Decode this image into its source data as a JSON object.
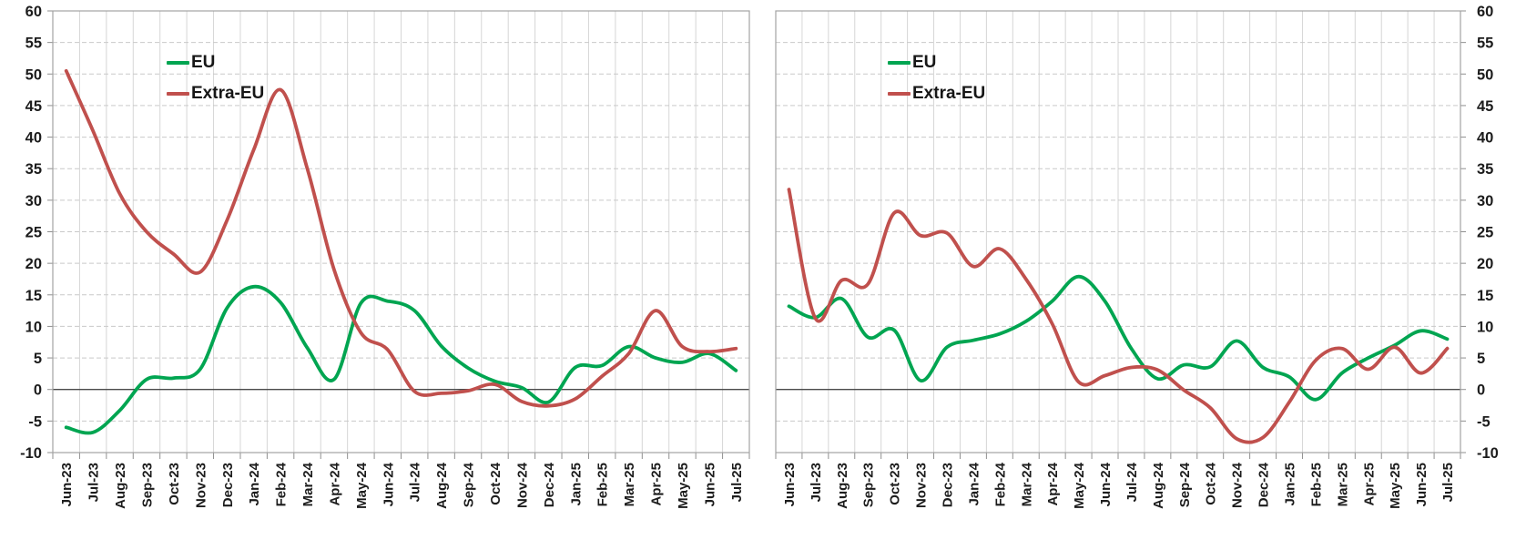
{
  "page": {
    "background": "#ffffff"
  },
  "colors": {
    "eu_line": "#00a551",
    "extra_eu_line": "#c0504d",
    "vertical_grid": "#d6d6d6",
    "horizontal_grid": "#c9c9c9",
    "plot_border": "#a3a3a3",
    "zero_line": "#4a4a4a",
    "tick_mark": "#8f8f8f",
    "axis_text": "#1c1c1c"
  },
  "chart_data": [
    {
      "type": "line",
      "title": "",
      "xlabel": "",
      "ylabel": "",
      "ylim": [
        -10,
        60
      ],
      "ytick_step": 5,
      "grid": "horizontal dashed, vertical solid",
      "legend_position": "inside top-left",
      "y_axis_side": "left",
      "smoothed": true,
      "y_ticks": [
        60,
        55,
        50,
        45,
        40,
        35,
        30,
        25,
        20,
        15,
        10,
        5,
        0,
        -5,
        -10
      ],
      "categories": [
        "Jun-23",
        "Jul-23",
        "Aug-23",
        "Sep-23",
        "Oct-23",
        "Nov-23",
        "Dec-23",
        "Jan-24",
        "Feb-24",
        "Mar-24",
        "Apr-24",
        "May-24",
        "Jun-24",
        "Jul-24",
        "Aug-24",
        "Sep-24",
        "Oct-24",
        "Nov-24",
        "Dec-24",
        "Jan-25",
        "Feb-25",
        "Mar-25",
        "Apr-25",
        "May-25",
        "Jun-25",
        "Jul-25"
      ],
      "series": [
        {
          "name": "EU",
          "color": "#00a551",
          "values": [
            -6.0,
            -6.8,
            -3.3,
            1.6,
            1.8,
            3.2,
            12.9,
            16.3,
            13.8,
            6.6,
            1.6,
            13.7,
            14.0,
            12.5,
            6.9,
            3.4,
            1.3,
            0.3,
            -2.0,
            3.5,
            3.8,
            6.8,
            5.0,
            4.3,
            5.7,
            3.0
          ]
        },
        {
          "name": "Extra-EU",
          "color": "#c0504d",
          "values": [
            50.5,
            41.0,
            31.0,
            25.0,
            21.5,
            18.6,
            26.8,
            38.0,
            47.5,
            35.0,
            19.0,
            9.0,
            6.3,
            -0.3,
            -0.6,
            -0.2,
            0.8,
            -1.9,
            -2.6,
            -1.5,
            2.1,
            5.7,
            12.5,
            6.8,
            6.0,
            6.5
          ]
        }
      ]
    },
    {
      "type": "line",
      "title": "",
      "xlabel": "",
      "ylabel": "",
      "ylim": [
        -10,
        60
      ],
      "ytick_step": 5,
      "grid": "horizontal dashed, vertical solid",
      "legend_position": "inside top-left",
      "y_axis_side": "right",
      "smoothed": true,
      "y_ticks": [
        60,
        55,
        50,
        45,
        40,
        35,
        30,
        25,
        20,
        15,
        10,
        5,
        0,
        -5,
        -10
      ],
      "categories": [
        "Jun-23",
        "Jul-23",
        "Aug-23",
        "Sep-23",
        "Oct-23",
        "Nov-23",
        "Dec-23",
        "Jan-24",
        "Feb-24",
        "Mar-24",
        "Apr-24",
        "May-24",
        "Jun-24",
        "Jul-24",
        "Aug-24",
        "Sep-24",
        "Oct-24",
        "Nov-24",
        "Dec-24",
        "Jan-25",
        "Feb-25",
        "Mar-25",
        "Apr-25",
        "May-25",
        "Jun-25",
        "Jul-25"
      ],
      "series": [
        {
          "name": "EU",
          "color": "#00a551",
          "values": [
            13.2,
            11.4,
            14.4,
            8.3,
            9.4,
            1.4,
            6.7,
            7.8,
            8.8,
            10.8,
            14.0,
            17.9,
            14.0,
            6.5,
            1.7,
            3.9,
            3.6,
            7.7,
            3.5,
            2.0,
            -1.6,
            2.6,
            5.0,
            7.0,
            9.3,
            8.0
          ]
        },
        {
          "name": "Extra-EU",
          "color": "#c0504d",
          "values": [
            31.7,
            11.3,
            17.3,
            16.7,
            28.0,
            24.4,
            24.8,
            19.5,
            22.3,
            17.5,
            10.4,
            1.2,
            2.2,
            3.5,
            3.1,
            -0.1,
            -2.9,
            -7.8,
            -7.6,
            -2.0,
            4.6,
            6.5,
            3.2,
            6.7,
            2.6,
            6.5
          ]
        }
      ]
    }
  ]
}
